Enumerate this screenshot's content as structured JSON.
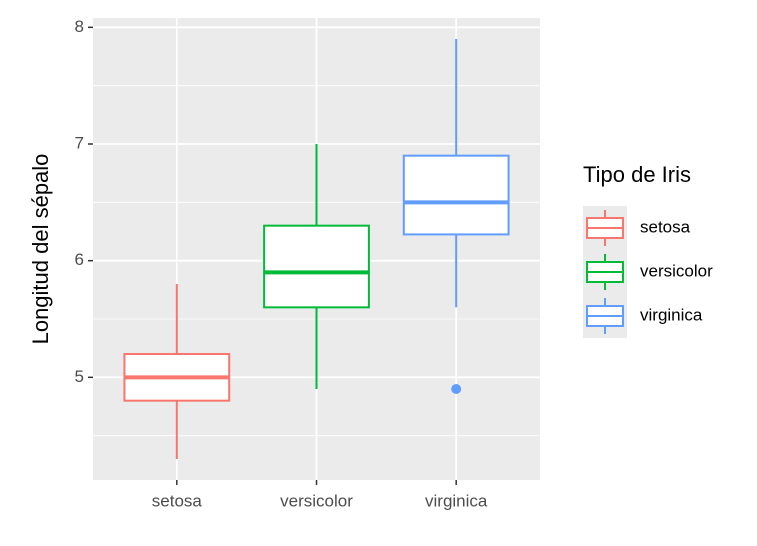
{
  "chart_data": {
    "type": "box",
    "y_label": "Longitud del sépalo",
    "legend_title": "Tipo de Iris",
    "categories": [
      "setosa",
      "versicolor",
      "virginica"
    ],
    "series": [
      {
        "name": "setosa",
        "color": "#F8766D",
        "whisker_low": 4.3,
        "q1": 4.8,
        "median": 5.0,
        "q3": 5.2,
        "whisker_high": 5.8,
        "outliers": []
      },
      {
        "name": "versicolor",
        "color": "#00BA38",
        "whisker_low": 4.9,
        "q1": 5.6,
        "median": 5.9,
        "q3": 6.3,
        "whisker_high": 7.0,
        "outliers": []
      },
      {
        "name": "virginica",
        "color": "#619CFF",
        "whisker_low": 5.6,
        "q1": 6.225,
        "median": 6.5,
        "q3": 6.9,
        "whisker_high": 7.9,
        "outliers": [
          4.9
        ]
      }
    ],
    "ylim": [
      4.12,
      8.08
    ],
    "yticks": [
      5,
      6,
      7,
      8
    ],
    "yminorticks": [
      4.5,
      5.5,
      6.5,
      7.5
    ],
    "grid": true,
    "legend_position": "right"
  }
}
